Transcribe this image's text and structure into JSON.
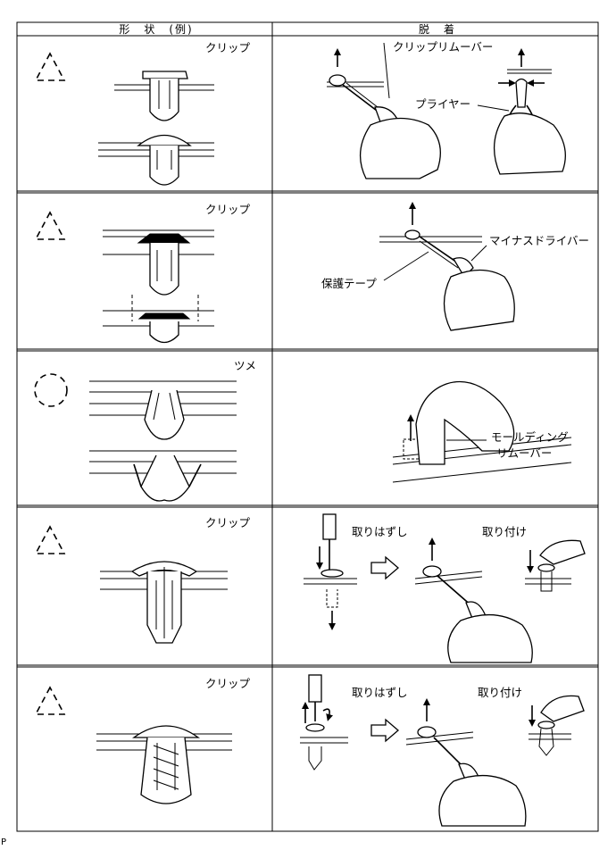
{
  "header": {
    "shape_example": "形　状　(例)",
    "removal": "脱　着"
  },
  "rows": [
    {
      "symbol": "triangle",
      "type_label": "クリップ",
      "callouts": {
        "clip_remover": "クリップリムーバー",
        "pliers": "プライヤー"
      }
    },
    {
      "symbol": "triangle",
      "type_label": "クリップ",
      "callouts": {
        "screwdriver": "マイナスドライバー",
        "tape": "保護テープ"
      }
    },
    {
      "symbol": "circle",
      "type_label": "ツメ",
      "callouts": {
        "molding_remover_1": "モールディング",
        "molding_remover_2": "リムーバー"
      }
    },
    {
      "symbol": "triangle",
      "type_label": "クリップ",
      "callouts": {
        "remove": "取りはずし",
        "install": "取り付け"
      }
    },
    {
      "symbol": "triangle",
      "type_label": "クリップ",
      "callouts": {
        "remove": "取りはずし",
        "install": "取り付け"
      }
    }
  ],
  "page_code": "P"
}
